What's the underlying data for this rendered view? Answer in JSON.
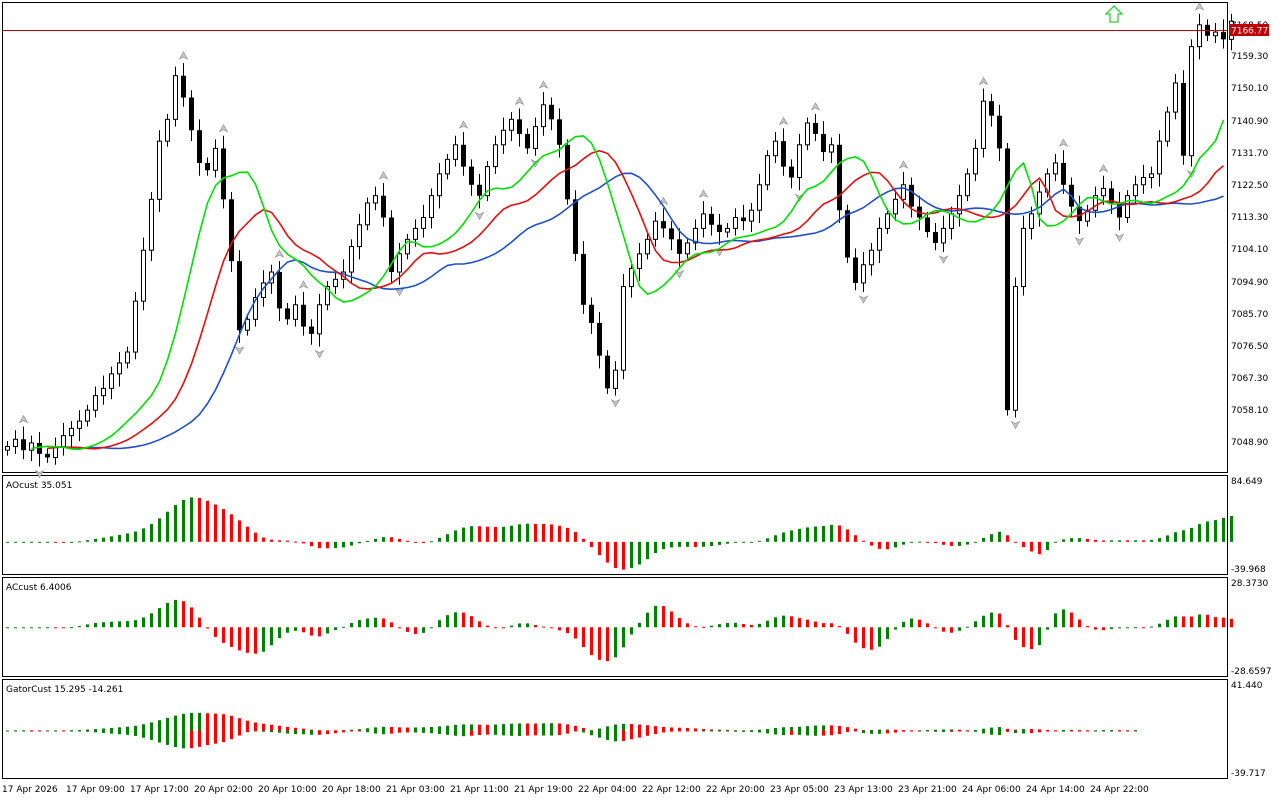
{
  "main": {
    "price_line": "7166.77",
    "top_tick": "7168.50",
    "price_ticks": [
      "7159.30",
      "7150.10",
      "7140.90",
      "7131.70",
      "7122.50",
      "7113.30",
      "7104.10",
      "7094.90",
      "7085.70",
      "7076.50",
      "7067.30",
      "7058.10",
      "7048.90"
    ]
  },
  "ao": {
    "label": "AOcust 35.051",
    "max": "84.649",
    "min": "-39.968"
  },
  "ac": {
    "label": "ACcust 6.4006",
    "max": "28.3730",
    "min": "-28.6597"
  },
  "gator": {
    "label": "GatorCust 15.295 -14.261",
    "max": "41.440",
    "min": "-39.717"
  },
  "time_ticks": [
    "17 Apr 2026",
    "17 Apr 09:00",
    "17 Apr 17:00",
    "20 Apr 02:00",
    "20 Apr 10:00",
    "20 Apr 18:00",
    "21 Apr 03:00",
    "21 Apr 11:00",
    "21 Apr 19:00",
    "22 Apr 04:00",
    "22 Apr 12:00",
    "22 Apr 20:00",
    "23 Apr 05:00",
    "23 Apr 13:00",
    "23 Apr 21:00",
    "24 Apr 06:00",
    "24 Apr 14:00",
    "24 Apr 22:00"
  ],
  "colors": {
    "up_bar": "#008000",
    "down_bar": "#ff0000",
    "jaw": "#1e50c8",
    "teeth": "#e01010",
    "lips": "#00e000",
    "price_line": "#c00000",
    "arrow": "#32cd32"
  },
  "chart_data": [
    {
      "type": "candlestick",
      "name": "main",
      "ylim": [
        7043,
        7172
      ],
      "closes": [
        7050,
        7052,
        7049,
        7051,
        7048,
        7047,
        7050,
        7053,
        7055,
        7057,
        7060,
        7064,
        7066,
        7070,
        7073,
        7076,
        7090,
        7104,
        7118,
        7134,
        7140,
        7152,
        7146,
        7137,
        7128,
        7126,
        7132,
        7118,
        7101,
        7082,
        7085,
        7091,
        7095,
        7098,
        7088,
        7085,
        7089,
        7083,
        7081,
        7089,
        7094,
        7096,
        7098,
        7105,
        7111,
        7117,
        7119,
        7113,
        7098,
        7103,
        7107,
        7110,
        7113,
        7119,
        7125,
        7129,
        7133,
        7127,
        7122,
        7119,
        7127,
        7133,
        7137,
        7140,
        7136,
        7132,
        7138,
        7144,
        7140,
        7133,
        7118,
        7103,
        7089,
        7084,
        7075,
        7066,
        7071,
        7094,
        7099,
        7103,
        7107,
        7112,
        7110,
        7107,
        7103,
        7106,
        7110,
        7114,
        7111,
        7109,
        7110,
        7113,
        7112,
        7115,
        7122,
        7130,
        7134,
        7127,
        7124,
        7133,
        7139,
        7136,
        7131,
        7133,
        7115,
        7102,
        7095,
        7100,
        7104,
        7110,
        7114,
        7118,
        7122,
        7116,
        7113,
        7109,
        7106,
        7110,
        7114,
        7119,
        7125,
        7132,
        7145,
        7141,
        7132,
        7060,
        7094,
        7110,
        7114,
        7120,
        7125,
        7128,
        7122,
        7116,
        7112,
        7115,
        7119,
        7121,
        7117,
        7113,
        7119,
        7122,
        7124,
        7125,
        7134,
        7142,
        7150,
        7130,
        7160,
        7166,
        7163,
        7164,
        7162,
        7167
      ]
    },
    {
      "type": "histogram",
      "name": "AOcust",
      "ylim": [
        -39.968,
        84.649
      ]
    },
    {
      "type": "histogram",
      "name": "ACcust",
      "ylim": [
        -28.6597,
        28.373
      ]
    },
    {
      "type": "histogram",
      "name": "GatorCust",
      "ylim": [
        -39.717,
        41.44
      ]
    }
  ]
}
